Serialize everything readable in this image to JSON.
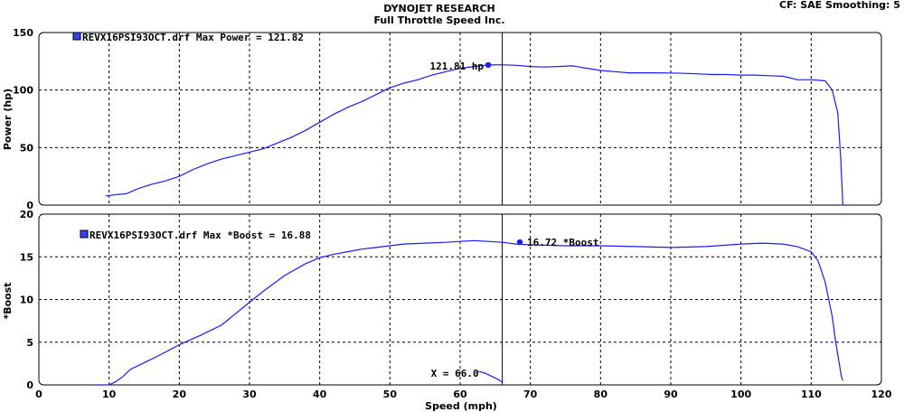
{
  "header": {
    "title": "DYNOJET RESEARCH",
    "subtitle": "Full Throttle Speed Inc.",
    "settings": "CF: SAE  Smoothing: 5"
  },
  "colors": {
    "series": "#1a1aff",
    "legend_box": "#3344ee",
    "frame": "#000000"
  },
  "chart_data": [
    {
      "type": "line",
      "ylabel": "Power (hp)",
      "ylim": [
        0,
        150
      ],
      "yticks": [
        "0",
        "50",
        "100",
        "150"
      ],
      "xlim": [
        0,
        120
      ],
      "grid": true,
      "legend": "REVX16PSI93OCT.drf Max Power = 121.82",
      "annotation": {
        "text": "121.81 hp",
        "x": 64,
        "y": 121.81
      },
      "cursor_x": 66,
      "series": [
        {
          "x": [
            9.5,
            11,
            12.5,
            14,
            16,
            18,
            20,
            22,
            24,
            26,
            28,
            30,
            32,
            34,
            36,
            38,
            40,
            42,
            44,
            46,
            48,
            50,
            52,
            54,
            56,
            58,
            60,
            62,
            64,
            66,
            68,
            70,
            72,
            74,
            76,
            78,
            80,
            82,
            84,
            86,
            88,
            90,
            92,
            94,
            96,
            98,
            100,
            102,
            104,
            106,
            108,
            110,
            112,
            113,
            113.8,
            114.2,
            114.4,
            114.5
          ],
          "y": [
            8,
            9,
            10,
            14,
            18,
            21,
            25,
            31,
            36,
            40,
            43,
            46,
            49,
            54,
            59,
            65,
            72,
            79,
            85,
            90,
            96,
            102,
            106,
            109,
            113,
            116,
            119,
            120.5,
            121.8,
            122,
            121.5,
            120.5,
            120,
            120.5,
            121,
            119,
            117,
            116,
            115,
            115,
            115,
            114.8,
            114.5,
            114,
            113.5,
            113.5,
            113,
            113,
            112.5,
            112,
            109,
            109,
            108,
            100,
            80,
            40,
            15,
            0
          ]
        }
      ]
    },
    {
      "type": "line",
      "ylabel": "*Boost",
      "ylim": [
        0,
        20
      ],
      "yticks": [
        "0",
        "5",
        "10",
        "15",
        "20"
      ],
      "xlim": [
        0,
        120
      ],
      "xlabel": "Speed (mph)",
      "xticks": [
        "0",
        "10",
        "20",
        "30",
        "40",
        "50",
        "60",
        "70",
        "80",
        "90",
        "100",
        "110",
        "120"
      ],
      "grid": true,
      "legend": "REVX16PSI93OCT.drf Max *Boost = 16.88",
      "annotation": {
        "text": "16.72 *Boost",
        "x": 68.5,
        "y": 16.72
      },
      "cursor_label": "X = 66.0",
      "cursor_x": 66,
      "series": [
        {
          "x": [
            8,
            10,
            11,
            12,
            13,
            15,
            17,
            20,
            23,
            26,
            29,
            32,
            35,
            38,
            40,
            42,
            44,
            46,
            48,
            50,
            52,
            55,
            58,
            60,
            62,
            64,
            66,
            68,
            70,
            75,
            80,
            85,
            90,
            95,
            100,
            103,
            106,
            108,
            110,
            111,
            112,
            113,
            113.5,
            114,
            114.3,
            114.5
          ],
          "y": [
            0,
            0,
            0.4,
            1.0,
            1.8,
            2.6,
            3.4,
            4.7,
            5.8,
            7.0,
            9.0,
            11.0,
            12.8,
            14.2,
            14.9,
            15.3,
            15.6,
            15.9,
            16.1,
            16.3,
            16.5,
            16.6,
            16.7,
            16.8,
            16.9,
            16.8,
            16.7,
            16.5,
            16.4,
            16.3,
            16.3,
            16.2,
            16.1,
            16.2,
            16.5,
            16.6,
            16.5,
            16.2,
            15.6,
            14.5,
            12.0,
            8.0,
            5.0,
            2.5,
            1.0,
            0.5
          ]
        }
      ],
      "cursor_trace": {
        "x": [
          62.5,
          63.5,
          64.5,
          65.5,
          66
        ],
        "y": [
          1.6,
          1.4,
          1.0,
          0.6,
          0.3
        ]
      }
    }
  ]
}
